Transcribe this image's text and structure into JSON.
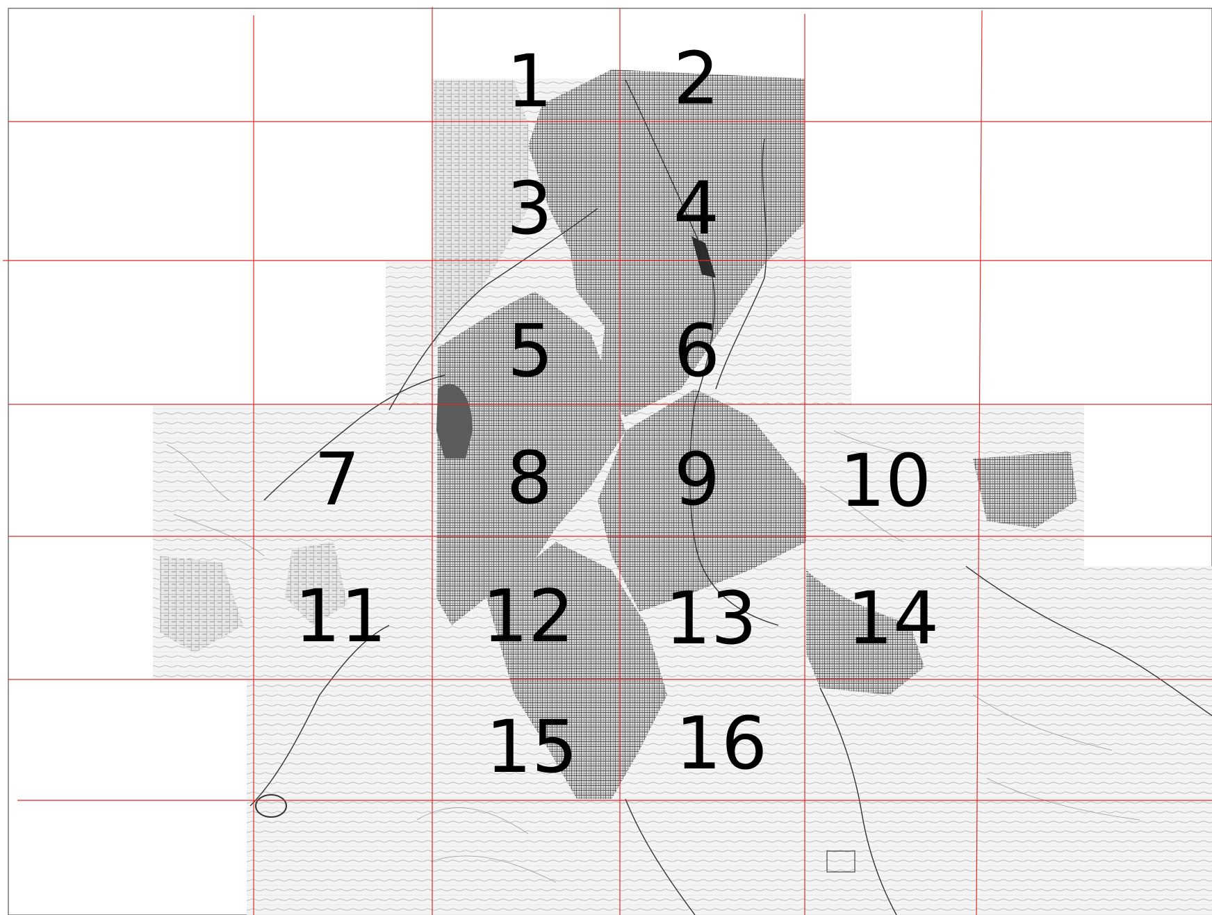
{
  "map": {
    "colors": {
      "grid": "#e0282a",
      "urban_dense": "#6a6a6a",
      "urban_medium": "#9c9c9c",
      "urban_light": "#c9c9c9",
      "terrain": "#eeeeee",
      "labels": "#000000"
    },
    "sheets": [
      {
        "id": 1,
        "label": "1"
      },
      {
        "id": 2,
        "label": "2"
      },
      {
        "id": 3,
        "label": "3"
      },
      {
        "id": 4,
        "label": "4"
      },
      {
        "id": 5,
        "label": "5"
      },
      {
        "id": 6,
        "label": "6"
      },
      {
        "id": 7,
        "label": "7"
      },
      {
        "id": 8,
        "label": "8"
      },
      {
        "id": 9,
        "label": "9"
      },
      {
        "id": 10,
        "label": "10"
      },
      {
        "id": 11,
        "label": "11"
      },
      {
        "id": 12,
        "label": "12"
      },
      {
        "id": 13,
        "label": "13"
      },
      {
        "id": 14,
        "label": "14"
      },
      {
        "id": 15,
        "label": "15"
      },
      {
        "id": 16,
        "label": "16"
      }
    ]
  }
}
